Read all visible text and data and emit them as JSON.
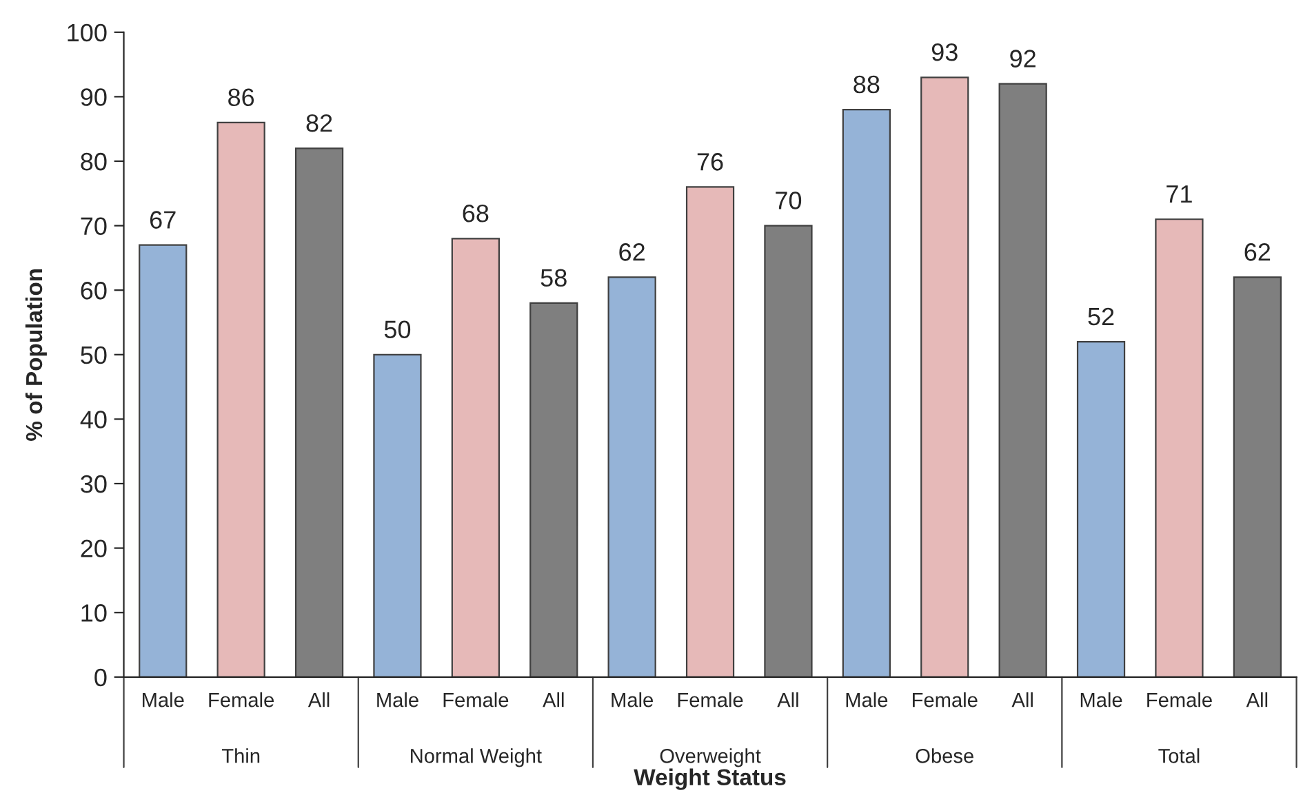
{
  "chart_data": {
    "type": "bar",
    "xlabel": "Weight Status",
    "ylabel": "% of Population",
    "categories": [
      "Male",
      "Female",
      "All",
      "Male",
      "Female",
      "All",
      "Male",
      "Female",
      "All",
      "Male",
      "Female",
      "All",
      "Male",
      "Female",
      "All"
    ],
    "values": [
      67,
      86,
      82,
      50,
      68,
      58,
      62,
      76,
      70,
      88,
      93,
      92,
      52,
      71,
      62
    ],
    "colors": [
      "#95b3d7",
      "#e6b9b8",
      "#7f7f7f",
      "#95b3d7",
      "#e6b9b8",
      "#7f7f7f",
      "#95b3d7",
      "#e6b9b8",
      "#7f7f7f",
      "#95b3d7",
      "#e6b9b8",
      "#7f7f7f",
      "#95b3d7",
      "#e6b9b8",
      "#7f7f7f"
    ],
    "annotations": [
      "Thin",
      "Normal Weight",
      "Overweight",
      "Obese",
      "Total"
    ],
    "ylim": [
      0,
      100
    ],
    "yticks": [
      0,
      10,
      20,
      30,
      40,
      50,
      60,
      70,
      80,
      90,
      100
    ],
    "data_labels": true,
    "grid": false,
    "legend": false
  }
}
